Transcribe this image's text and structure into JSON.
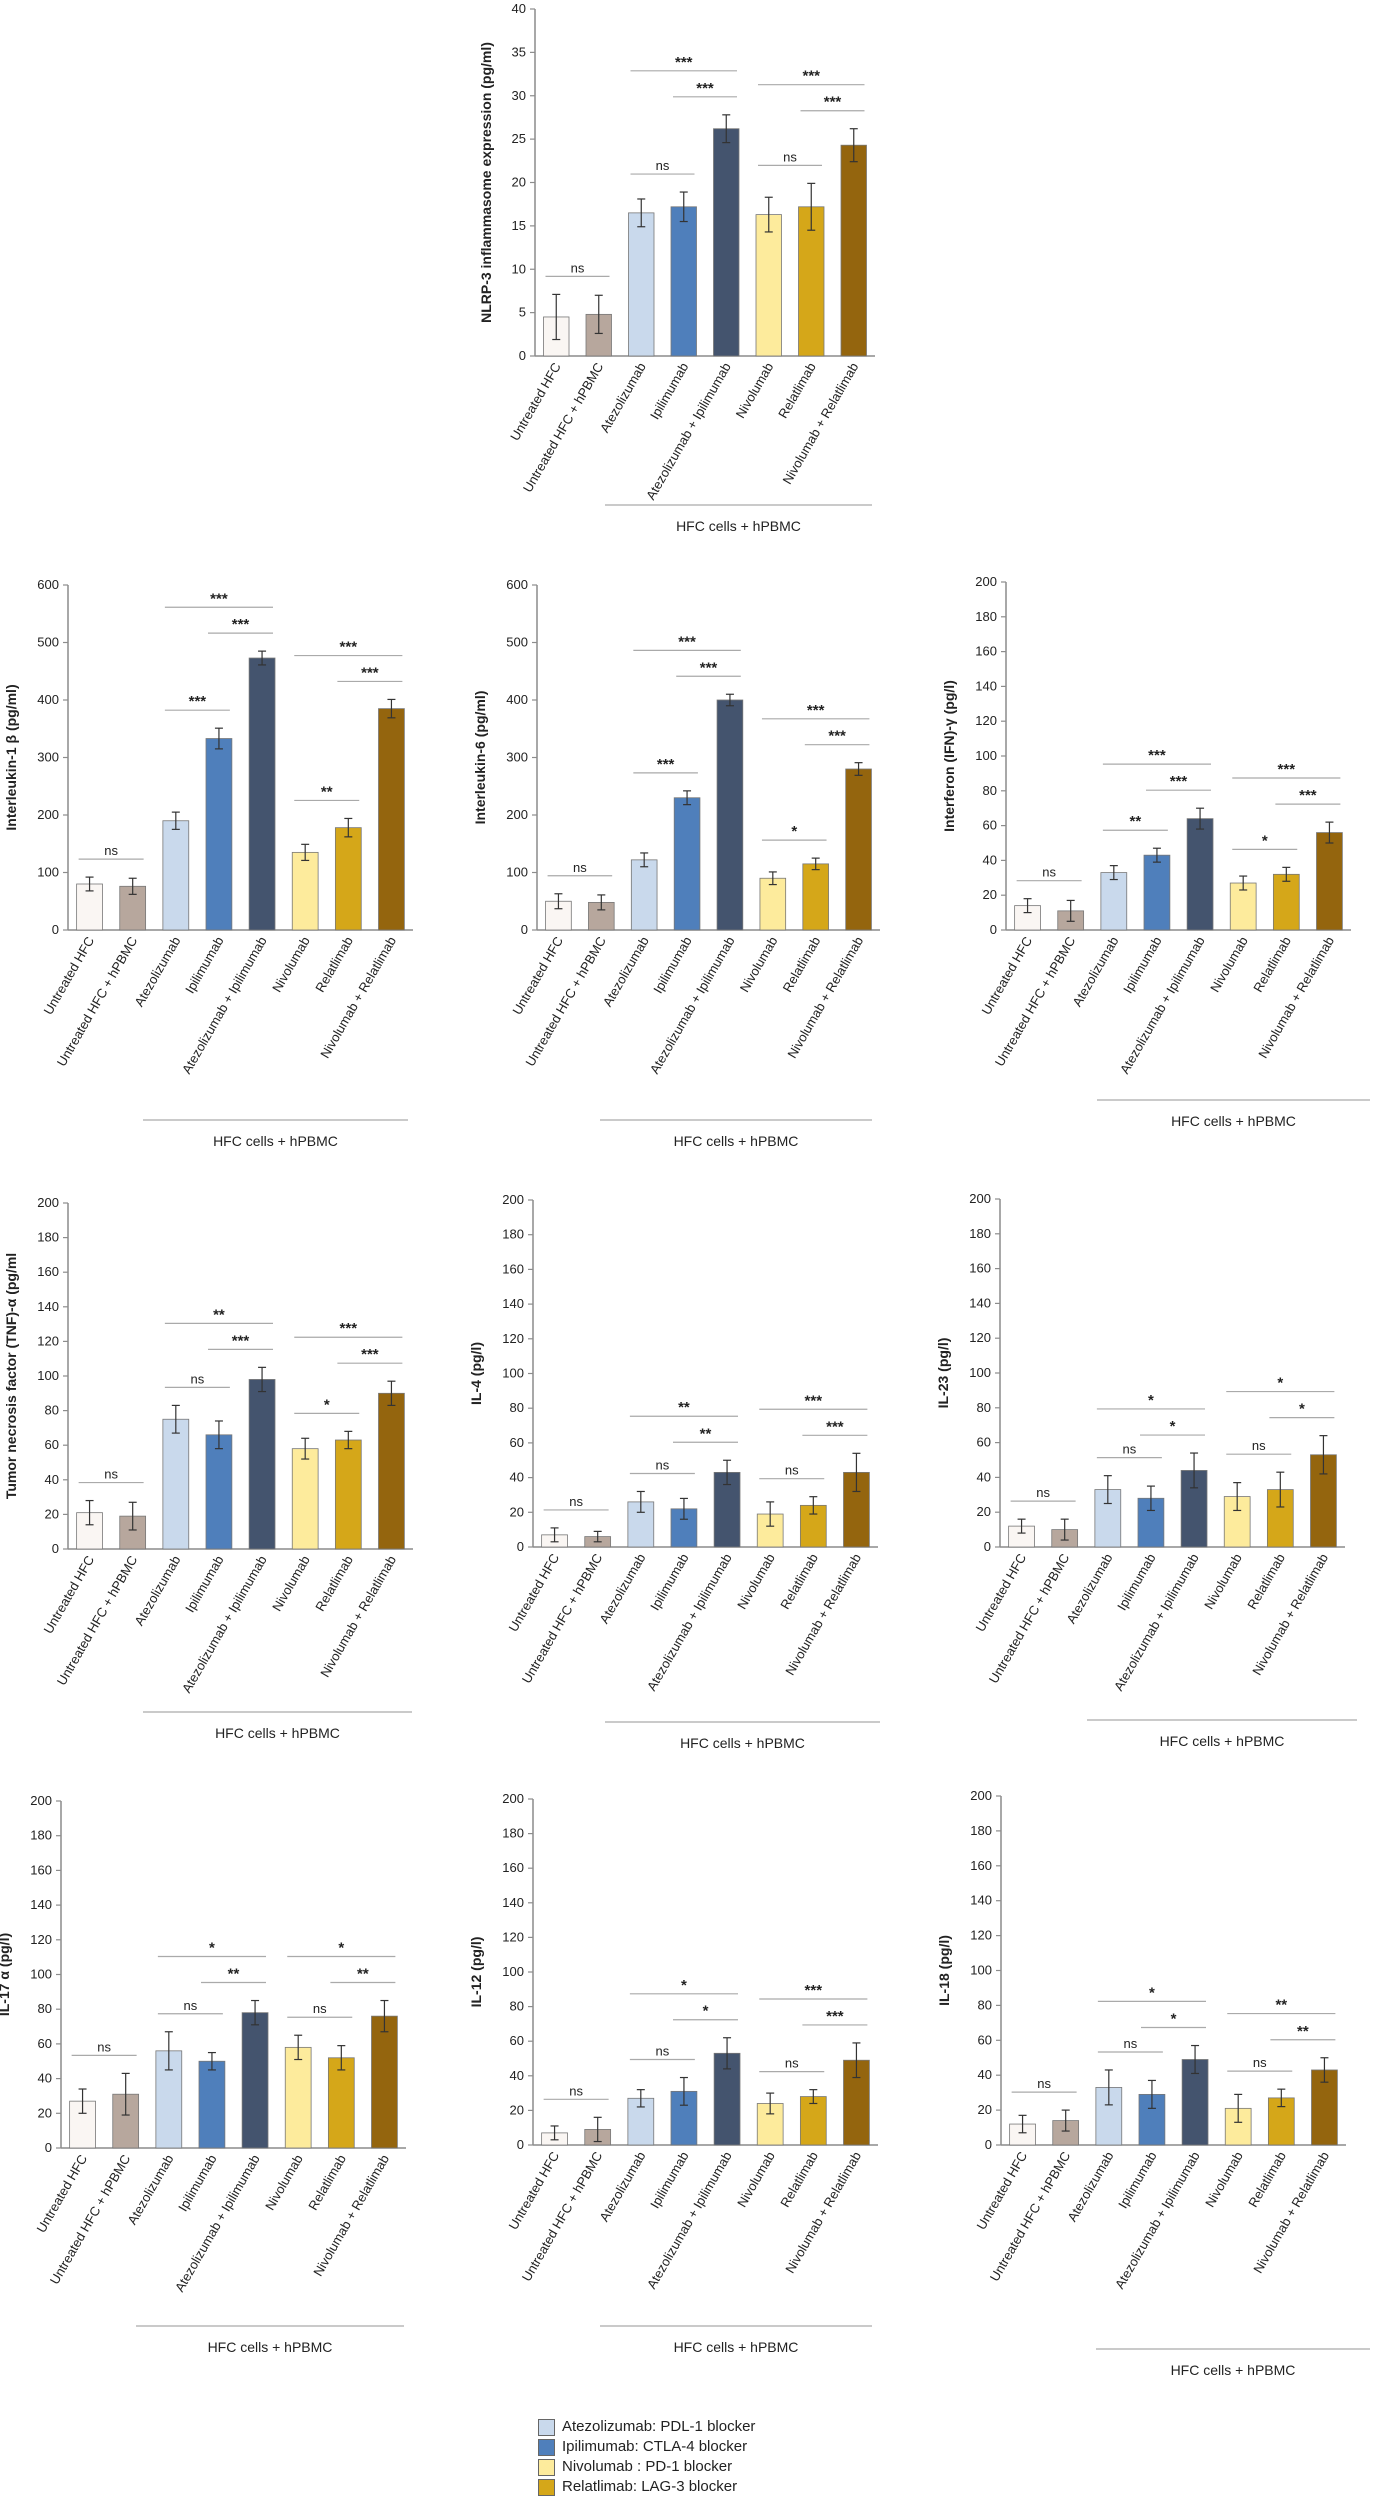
{
  "palette": {
    "untreated": "#faf6f3",
    "hpbmc": "#b7a79d",
    "atezolizumab": "#c9d9ec",
    "ipilimumab": "#4f7fbb",
    "atezo_ipili": "#44546e",
    "nivolumab": "#fdeb9c",
    "relatlimab": "#d5a719",
    "nivo_rela": "#94650e",
    "axis": "#8c8c8c",
    "text": "#222222"
  },
  "categories": [
    "Untreated  HFC",
    "Untreated  HFC + hPBMC",
    "Atezolizumab",
    "Ipilimumab",
    "Atezolizumab + Ipilimumab",
    "Nivolumab",
    "Relatlimab",
    "Nivolumab + Relatlimab"
  ],
  "group_label": "HFC cells + hPBMC",
  "chart_data": [
    {
      "type": "bar",
      "title": "",
      "ylabel": "NLRP-3 inflammasome expression  (pg/ml)",
      "ylim": [
        0,
        40
      ],
      "ystep": 5,
      "values": [
        4.5,
        4.8,
        16.5,
        17.2,
        26.2,
        16.3,
        17.2,
        24.3
      ],
      "errors": [
        2.6,
        2.2,
        1.6,
        1.7,
        1.6,
        2.0,
        2.7,
        1.9
      ],
      "annotations": [
        {
          "from": 0,
          "to": 1,
          "text": "ns"
        },
        {
          "from": 2,
          "to": 3,
          "text": "ns"
        },
        {
          "from": 2,
          "to": 4,
          "text": "***"
        },
        {
          "from": 3,
          "to": 4,
          "text": "***"
        },
        {
          "from": 5,
          "to": 6,
          "text": "ns"
        },
        {
          "from": 5,
          "to": 7,
          "text": "***"
        },
        {
          "from": 6,
          "to": 7,
          "text": "***"
        }
      ]
    },
    {
      "type": "bar",
      "title": "",
      "ylabel": "Interleukin-1 β  (pg/ml)",
      "ylim": [
        0,
        600
      ],
      "ystep": 100,
      "values": [
        80,
        76,
        190,
        333,
        473,
        135,
        178,
        385
      ],
      "errors": [
        12,
        14,
        15,
        18,
        12,
        14,
        16,
        16
      ],
      "annotations": [
        {
          "from": 0,
          "to": 1,
          "text": "ns"
        },
        {
          "from": 2,
          "to": 3,
          "text": "***"
        },
        {
          "from": 2,
          "to": 4,
          "text": "***"
        },
        {
          "from": 3,
          "to": 4,
          "text": "***"
        },
        {
          "from": 5,
          "to": 6,
          "text": "**"
        },
        {
          "from": 5,
          "to": 7,
          "text": "***"
        },
        {
          "from": 6,
          "to": 7,
          "text": "***"
        }
      ]
    },
    {
      "type": "bar",
      "title": "",
      "ylabel": "Interleukin-6  (pg/ml)",
      "ylim": [
        0,
        600
      ],
      "ystep": 100,
      "values": [
        50,
        48,
        122,
        230,
        400,
        90,
        115,
        280
      ],
      "errors": [
        13,
        13,
        12,
        12,
        10,
        11,
        10,
        11
      ],
      "annotations": [
        {
          "from": 0,
          "to": 1,
          "text": "ns"
        },
        {
          "from": 2,
          "to": 3,
          "text": "***"
        },
        {
          "from": 2,
          "to": 4,
          "text": "***"
        },
        {
          "from": 3,
          "to": 4,
          "text": "***"
        },
        {
          "from": 5,
          "to": 6,
          "text": "*"
        },
        {
          "from": 5,
          "to": 7,
          "text": "***"
        },
        {
          "from": 6,
          "to": 7,
          "text": "***"
        }
      ]
    },
    {
      "type": "bar",
      "title": "",
      "ylabel": "Interferon (IFN)-γ  (pg/l)",
      "ylim": [
        0,
        200
      ],
      "ystep": 20,
      "values": [
        14,
        11,
        33,
        43,
        64,
        27,
        32,
        56
      ],
      "errors": [
        4,
        6,
        4,
        4,
        6,
        4,
        4,
        6
      ],
      "annotations": [
        {
          "from": 0,
          "to": 1,
          "text": "ns"
        },
        {
          "from": 2,
          "to": 3,
          "text": "**"
        },
        {
          "from": 2,
          "to": 4,
          "text": "***"
        },
        {
          "from": 3,
          "to": 4,
          "text": "***"
        },
        {
          "from": 5,
          "to": 6,
          "text": "*"
        },
        {
          "from": 5,
          "to": 7,
          "text": "***"
        },
        {
          "from": 6,
          "to": 7,
          "text": "***"
        }
      ]
    },
    {
      "type": "bar",
      "title": "",
      "ylabel": "Tumor necrosis factor (TNF)-α (pg/ml",
      "ylim": [
        0,
        200
      ],
      "ystep": 20,
      "values": [
        21,
        19,
        75,
        66,
        98,
        58,
        63,
        90
      ],
      "errors": [
        7,
        8,
        8,
        8,
        7,
        6,
        5,
        7
      ],
      "annotations": [
        {
          "from": 0,
          "to": 1,
          "text": "ns"
        },
        {
          "from": 2,
          "to": 3,
          "text": "ns"
        },
        {
          "from": 2,
          "to": 4,
          "text": "**"
        },
        {
          "from": 3,
          "to": 4,
          "text": "***"
        },
        {
          "from": 5,
          "to": 6,
          "text": "*"
        },
        {
          "from": 5,
          "to": 7,
          "text": "***"
        },
        {
          "from": 6,
          "to": 7,
          "text": "***"
        }
      ]
    },
    {
      "type": "bar",
      "title": "",
      "ylabel": "IL-4  (pg/l)",
      "ylim": [
        0,
        200
      ],
      "ystep": 20,
      "values": [
        7,
        6,
        26,
        22,
        43,
        19,
        24,
        43
      ],
      "errors": [
        4,
        3,
        6,
        6,
        7,
        7,
        5,
        11
      ],
      "annotations": [
        {
          "from": 0,
          "to": 1,
          "text": "ns"
        },
        {
          "from": 2,
          "to": 3,
          "text": "ns"
        },
        {
          "from": 2,
          "to": 4,
          "text": "**"
        },
        {
          "from": 3,
          "to": 4,
          "text": "**"
        },
        {
          "from": 5,
          "to": 6,
          "text": "ns"
        },
        {
          "from": 5,
          "to": 7,
          "text": "***"
        },
        {
          "from": 6,
          "to": 7,
          "text": "***"
        }
      ]
    },
    {
      "type": "bar",
      "title": "",
      "ylabel": "IL-23  (pg/l)",
      "ylim": [
        0,
        200
      ],
      "ystep": 20,
      "values": [
        12,
        10,
        33,
        28,
        44,
        29,
        33,
        53
      ],
      "errors": [
        4,
        6,
        8,
        7,
        10,
        8,
        10,
        11
      ],
      "annotations": [
        {
          "from": 0,
          "to": 1,
          "text": "ns"
        },
        {
          "from": 2,
          "to": 3,
          "text": "ns"
        },
        {
          "from": 2,
          "to": 4,
          "text": "*"
        },
        {
          "from": 3,
          "to": 4,
          "text": "*"
        },
        {
          "from": 5,
          "to": 6,
          "text": "ns"
        },
        {
          "from": 5,
          "to": 7,
          "text": "*"
        },
        {
          "from": 6,
          "to": 7,
          "text": "*"
        }
      ]
    },
    {
      "type": "bar",
      "title": "",
      "ylabel": "IL-17 α  (pg/l)",
      "ylim": [
        0,
        200
      ],
      "ystep": 20,
      "values": [
        27,
        31,
        56,
        50,
        78,
        58,
        52,
        76
      ],
      "errors": [
        7,
        12,
        11,
        5,
        7,
        7,
        7,
        9
      ],
      "annotations": [
        {
          "from": 0,
          "to": 1,
          "text": "ns"
        },
        {
          "from": 2,
          "to": 3,
          "text": "ns"
        },
        {
          "from": 2,
          "to": 4,
          "text": "*"
        },
        {
          "from": 3,
          "to": 4,
          "text": "**"
        },
        {
          "from": 5,
          "to": 6,
          "text": "ns"
        },
        {
          "from": 5,
          "to": 7,
          "text": "*"
        },
        {
          "from": 6,
          "to": 7,
          "text": "**"
        }
      ]
    },
    {
      "type": "bar",
      "title": "",
      "ylabel": "IL-12  (pg/l)",
      "ylim": [
        0,
        200
      ],
      "ystep": 20,
      "values": [
        7,
        9,
        27,
        31,
        53,
        24,
        28,
        49
      ],
      "errors": [
        4,
        7,
        5,
        8,
        9,
        6,
        4,
        10
      ],
      "annotations": [
        {
          "from": 0,
          "to": 1,
          "text": "ns"
        },
        {
          "from": 2,
          "to": 3,
          "text": "ns"
        },
        {
          "from": 2,
          "to": 4,
          "text": "*"
        },
        {
          "from": 3,
          "to": 4,
          "text": "*"
        },
        {
          "from": 5,
          "to": 6,
          "text": "ns"
        },
        {
          "from": 5,
          "to": 7,
          "text": "***"
        },
        {
          "from": 6,
          "to": 7,
          "text": "***"
        }
      ]
    },
    {
      "type": "bar",
      "title": "",
      "ylabel": "IL-18  (pg/l)",
      "ylim": [
        0,
        200
      ],
      "ystep": 20,
      "values": [
        12,
        14,
        33,
        29,
        49,
        21,
        27,
        43
      ],
      "errors": [
        5,
        6,
        10,
        8,
        8,
        8,
        5,
        7
      ],
      "annotations": [
        {
          "from": 0,
          "to": 1,
          "text": "ns"
        },
        {
          "from": 2,
          "to": 3,
          "text": "ns"
        },
        {
          "from": 2,
          "to": 4,
          "text": "*"
        },
        {
          "from": 3,
          "to": 4,
          "text": "*"
        },
        {
          "from": 5,
          "to": 6,
          "text": "ns"
        },
        {
          "from": 5,
          "to": 7,
          "text": "**"
        },
        {
          "from": 6,
          "to": 7,
          "text": "**"
        }
      ]
    }
  ],
  "legend": {
    "items": [
      {
        "label": "Atezolizumab:  PDL-1 blocker",
        "color": "#c9d9ec"
      },
      {
        "label": "Ipilimumab: CTLA-4 blocker",
        "color": "#4f7fbb"
      },
      {
        "label": "Nivolumab : PD-1 blocker",
        "color": "#fdeb9c"
      },
      {
        "label": "Relatlimab: LAG-3 blocker",
        "color": "#d5a719"
      }
    ]
  }
}
